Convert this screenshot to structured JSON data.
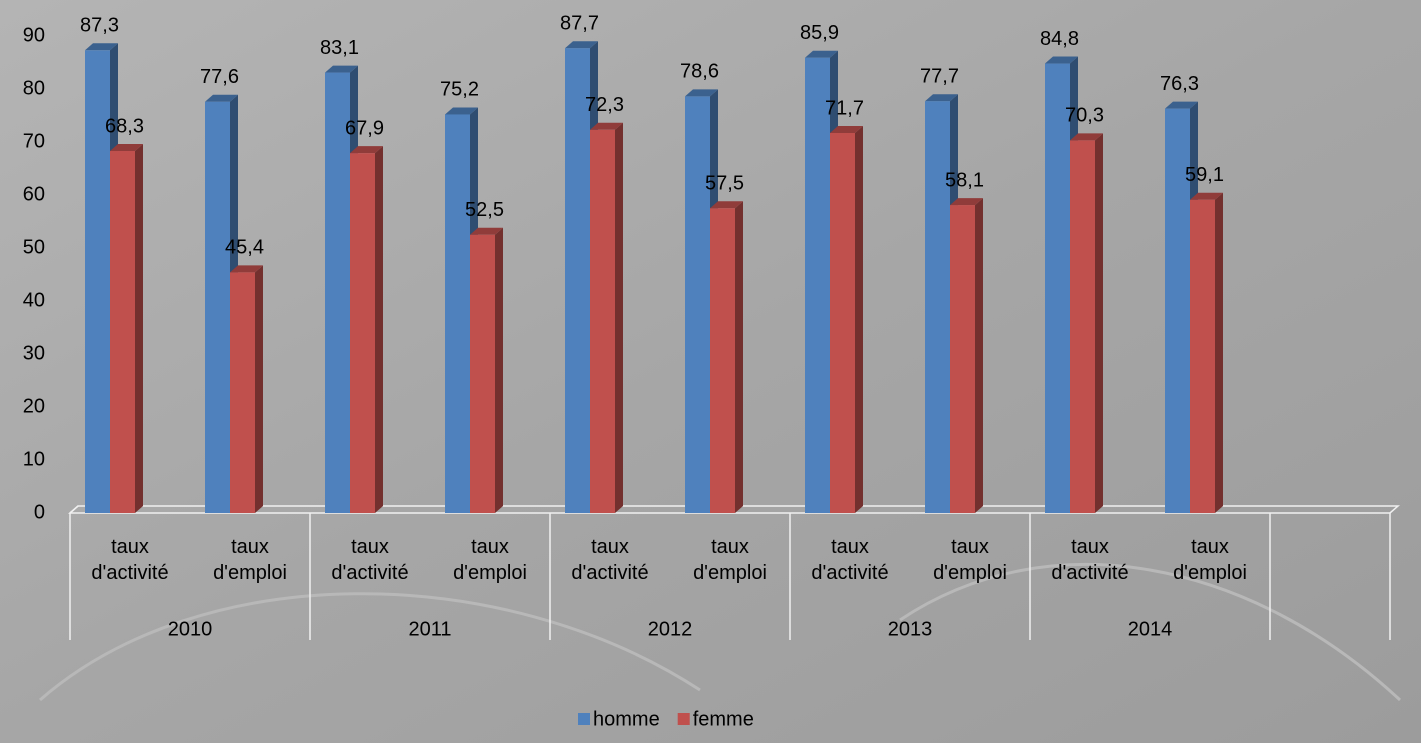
{
  "chart_data": {
    "type": "bar3d",
    "categories": [
      "taux d'activité",
      "taux d'emploi",
      "taux d'activité",
      "taux d'emploi",
      "taux d'activité",
      "taux d'emploi",
      "taux d'activité",
      "taux d'emploi",
      "taux d'activité",
      "taux d'emploi",
      null
    ],
    "groups": [
      "2010",
      "2011",
      "2012",
      "2013",
      "2014"
    ],
    "series": [
      {
        "name": "homme",
        "color": "#4f81bd",
        "values": [
          87.3,
          77.6,
          83.1,
          75.2,
          87.7,
          78.6,
          85.9,
          77.7,
          84.8,
          76.3,
          null
        ],
        "value_labels": [
          "87,3",
          "77,6",
          "83,1",
          "75,2",
          "87,7",
          "78,6",
          "85,9",
          "77,7",
          "84,8",
          "76,3",
          null
        ]
      },
      {
        "name": "femme",
        "color": "#c0504d",
        "values": [
          68.3,
          45.4,
          67.9,
          52.5,
          72.3,
          57.5,
          71.7,
          58.1,
          70.3,
          59.1,
          null
        ],
        "value_labels": [
          "68,3",
          "45,4",
          "67,9",
          "52,5",
          "72,3",
          "57,5",
          "71,7",
          "58,1",
          "70,3",
          "59,1",
          null
        ]
      }
    ],
    "ylim": [
      0,
      90
    ],
    "yticks": [
      0,
      10,
      20,
      30,
      40,
      50,
      60,
      70,
      80,
      90
    ],
    "legend": "bottom"
  }
}
